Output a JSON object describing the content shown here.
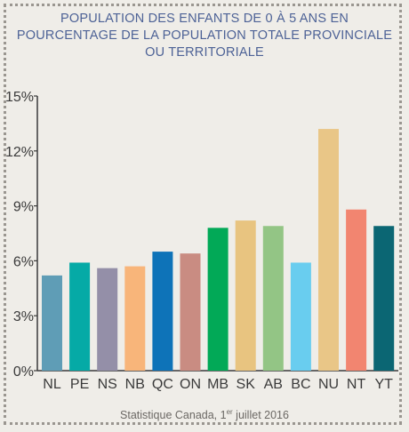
{
  "chart_data": {
    "type": "bar",
    "title_lines": [
      "POPULATION DES ENFANTS DE 0 À 5 ANS EN",
      "POURCENTAGE DE LA POPULATION TOTALE PROVINCIALE",
      "OU TERRITORIALE"
    ],
    "categories": [
      "NL",
      "PE",
      "NS",
      "NB",
      "QC",
      "ON",
      "MB",
      "SK",
      "AB",
      "BC",
      "NU",
      "NT",
      "YT"
    ],
    "values": [
      5.2,
      5.9,
      5.6,
      5.7,
      6.5,
      6.4,
      7.8,
      8.2,
      7.9,
      5.9,
      13.2,
      8.8,
      7.9
    ],
    "colors": [
      "#5f9db6",
      "#05aaa6",
      "#948fa8",
      "#f8b57a",
      "#0e73b8",
      "#c98c82",
      "#02a957",
      "#e8c480",
      "#93c585",
      "#69cdef",
      "#e9c687",
      "#f28570",
      "#0b6673"
    ],
    "ylim": [
      0,
      15
    ],
    "yticks": [
      "0%",
      "3%",
      "6%",
      "9%",
      "12%",
      "15%"
    ],
    "ytick_values": [
      0,
      3,
      6,
      9,
      12,
      15
    ],
    "grid": false
  },
  "footer": {
    "source": "Statistique Canada, 1",
    "sup": "er",
    "date": " juillet 2016"
  }
}
